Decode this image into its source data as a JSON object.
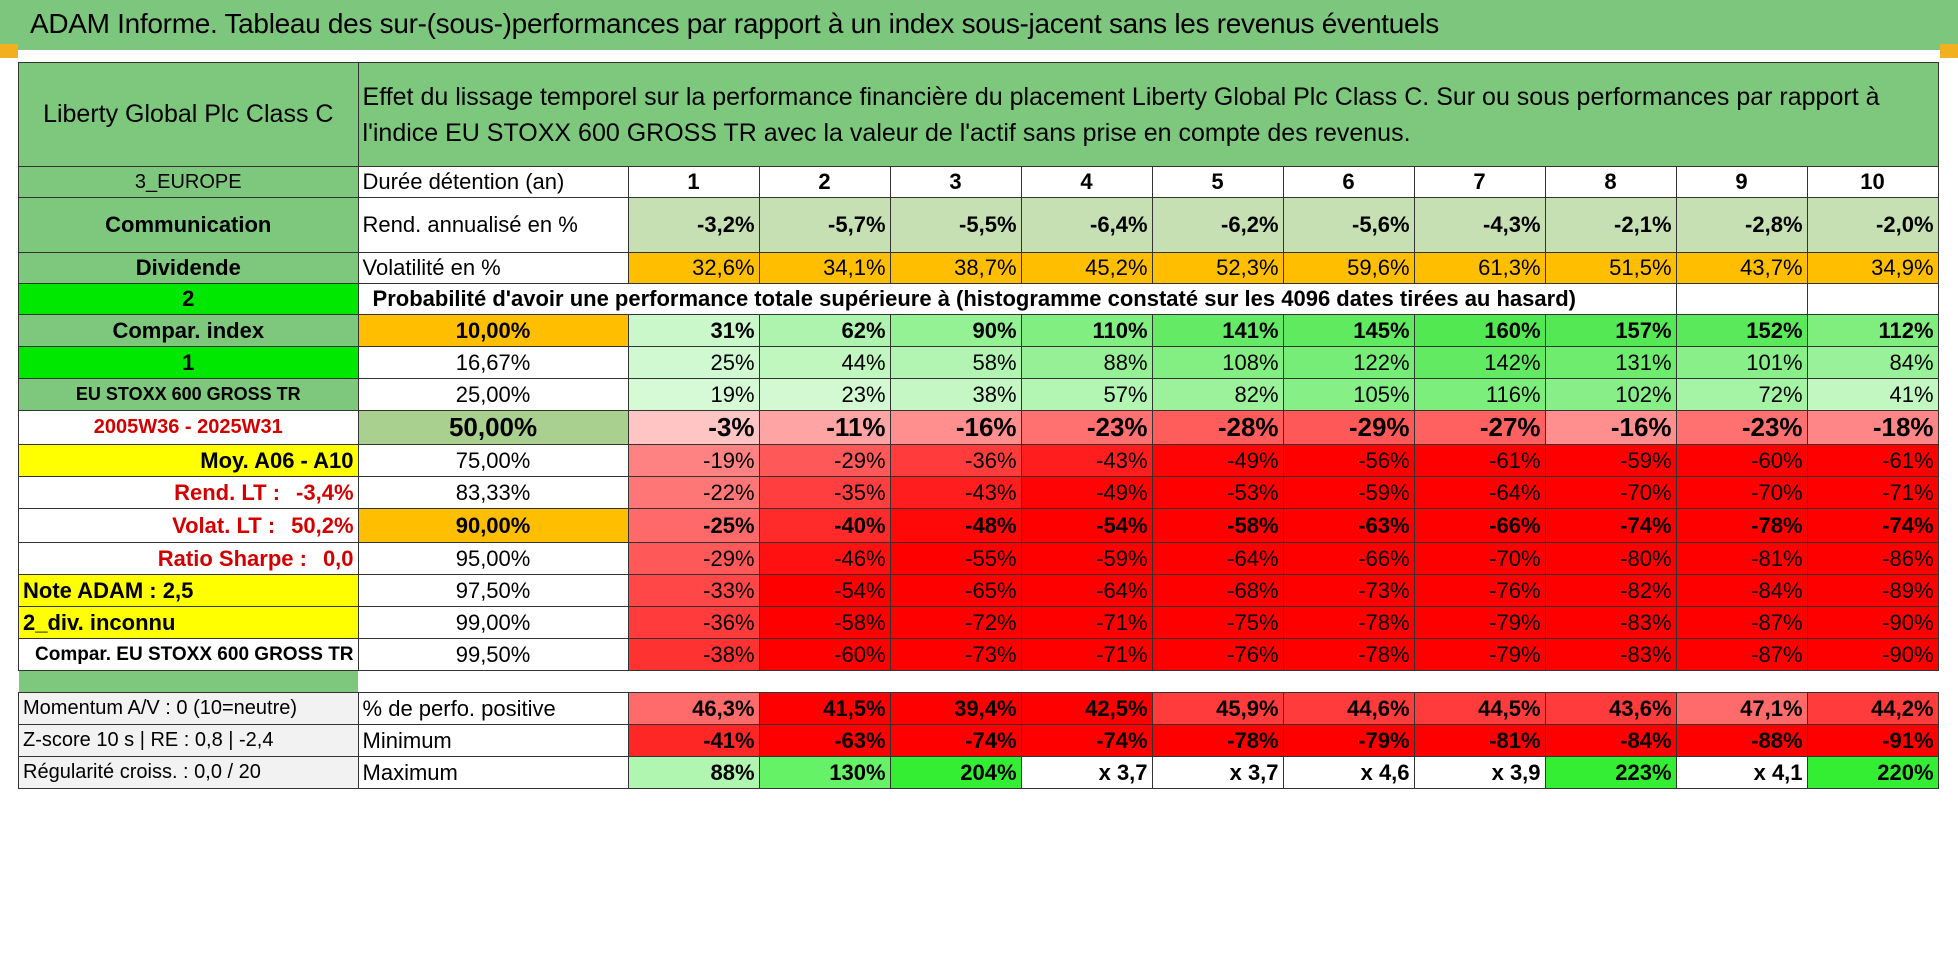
{
  "header": {
    "title": "ADAM Informe. Tableau des sur-(sous-)performances par rapport à un index sous-jacent sans les revenus éventuels"
  },
  "left": {
    "name": "Liberty Global Plc Class C",
    "region": "3_EUROPE",
    "sector": "Communication",
    "dividende": "Dividende",
    "two": "2",
    "compar_index": "Compar. index",
    "one": "1",
    "index_name": "EU STOXX 600 GROSS TR",
    "period": "2005W36 - 2025W31",
    "moy": "Moy. A06 - A10",
    "rend_lt_label": "Rend. LT :",
    "rend_lt_value": "-3,4%",
    "volat_lt_label": "Volat. LT :",
    "volat_lt_value": "50,2%",
    "sharpe_label": "Ratio Sharpe :",
    "sharpe_value": "0,0",
    "note": "Note ADAM : 2,5",
    "div": "2_div. inconnu",
    "compar": "Compar. EU STOXX 600 GROSS TR",
    "momentum": "Momentum A/V : 0 (10=neutre)",
    "zscore": "Z-score 10 s | RE : 0,8 | -2,4",
    "regularite": "Régularité croiss. : 0,0 / 20"
  },
  "description": "Effet du lissage temporel sur la performance financière du placement Liberty Global Plc Class C. Sur ou sous performances par rapport à l'indice EU STOXX 600 GROSS TR avec la valeur de l'actif sans prise en compte des revenus.",
  "labels": {
    "duree": "Durée détention (an)",
    "rend": "Rend. annualisé en %",
    "vol": "Volatilité en %",
    "proba": "Probabilité d'avoir une performance totale supérieure à (histogramme constaté sur les 4096 dates tirées au hasard)",
    "pos": "% de perfo. positive",
    "min": "Minimum",
    "max": "Maximum"
  },
  "years": [
    "1",
    "2",
    "3",
    "4",
    "5",
    "6",
    "7",
    "8",
    "9",
    "10"
  ],
  "rend": [
    "-3,2%",
    "-5,7%",
    "-5,5%",
    "-6,4%",
    "-6,2%",
    "-5,6%",
    "-4,3%",
    "-2,1%",
    "-2,8%",
    "-2,0%"
  ],
  "vol": [
    "32,6%",
    "34,1%",
    "38,7%",
    "45,2%",
    "52,3%",
    "59,6%",
    "61,3%",
    "51,5%",
    "43,7%",
    "34,9%"
  ],
  "pct_rows": [
    {
      "p": "10,00%",
      "v": [
        "31%",
        "62%",
        "90%",
        "110%",
        "141%",
        "145%",
        "160%",
        "157%",
        "152%",
        "112%"
      ]
    },
    {
      "p": "16,67%",
      "v": [
        "25%",
        "44%",
        "58%",
        "88%",
        "108%",
        "122%",
        "142%",
        "131%",
        "101%",
        "84%"
      ]
    },
    {
      "p": "25,00%",
      "v": [
        "19%",
        "23%",
        "38%",
        "57%",
        "82%",
        "105%",
        "116%",
        "102%",
        "72%",
        "41%"
      ]
    },
    {
      "p": "50,00%",
      "v": [
        "-3%",
        "-11%",
        "-16%",
        "-23%",
        "-28%",
        "-29%",
        "-27%",
        "-16%",
        "-23%",
        "-18%"
      ]
    },
    {
      "p": "75,00%",
      "v": [
        "-19%",
        "-29%",
        "-36%",
        "-43%",
        "-49%",
        "-56%",
        "-61%",
        "-59%",
        "-60%",
        "-61%"
      ]
    },
    {
      "p": "83,33%",
      "v": [
        "-22%",
        "-35%",
        "-43%",
        "-49%",
        "-53%",
        "-59%",
        "-64%",
        "-70%",
        "-70%",
        "-71%"
      ]
    },
    {
      "p": "90,00%",
      "v": [
        "-25%",
        "-40%",
        "-48%",
        "-54%",
        "-58%",
        "-63%",
        "-66%",
        "-74%",
        "-78%",
        "-74%"
      ]
    },
    {
      "p": "95,00%",
      "v": [
        "-29%",
        "-46%",
        "-55%",
        "-59%",
        "-64%",
        "-66%",
        "-70%",
        "-80%",
        "-81%",
        "-86%"
      ]
    },
    {
      "p": "97,50%",
      "v": [
        "-33%",
        "-54%",
        "-65%",
        "-64%",
        "-68%",
        "-73%",
        "-76%",
        "-82%",
        "-84%",
        "-89%"
      ]
    },
    {
      "p": "99,00%",
      "v": [
        "-36%",
        "-58%",
        "-72%",
        "-71%",
        "-75%",
        "-78%",
        "-79%",
        "-83%",
        "-87%",
        "-90%"
      ]
    },
    {
      "p": "99,50%",
      "v": [
        "-38%",
        "-60%",
        "-73%",
        "-71%",
        "-76%",
        "-78%",
        "-79%",
        "-83%",
        "-87%",
        "-90%"
      ]
    }
  ],
  "pos": [
    "46,3%",
    "41,5%",
    "39,4%",
    "42,5%",
    "45,9%",
    "44,6%",
    "44,5%",
    "43,6%",
    "47,1%",
    "44,2%"
  ],
  "min": [
    "-41%",
    "-63%",
    "-74%",
    "-74%",
    "-78%",
    "-79%",
    "-81%",
    "-84%",
    "-88%",
    "-91%"
  ],
  "max": [
    "88%",
    "130%",
    "204%",
    "x 3,7",
    "x 3,7",
    "x 4,6",
    "x 3,9",
    "223%",
    "x 4,1",
    "220%"
  ],
  "colors": {
    "green_header": "#7ec87e",
    "rend_bg": "#c6e0b4",
    "vol_bg": "#ffbf00",
    "yellow": "#ffff00",
    "bright_green": "#00e800",
    "red": "#ff0000"
  }
}
